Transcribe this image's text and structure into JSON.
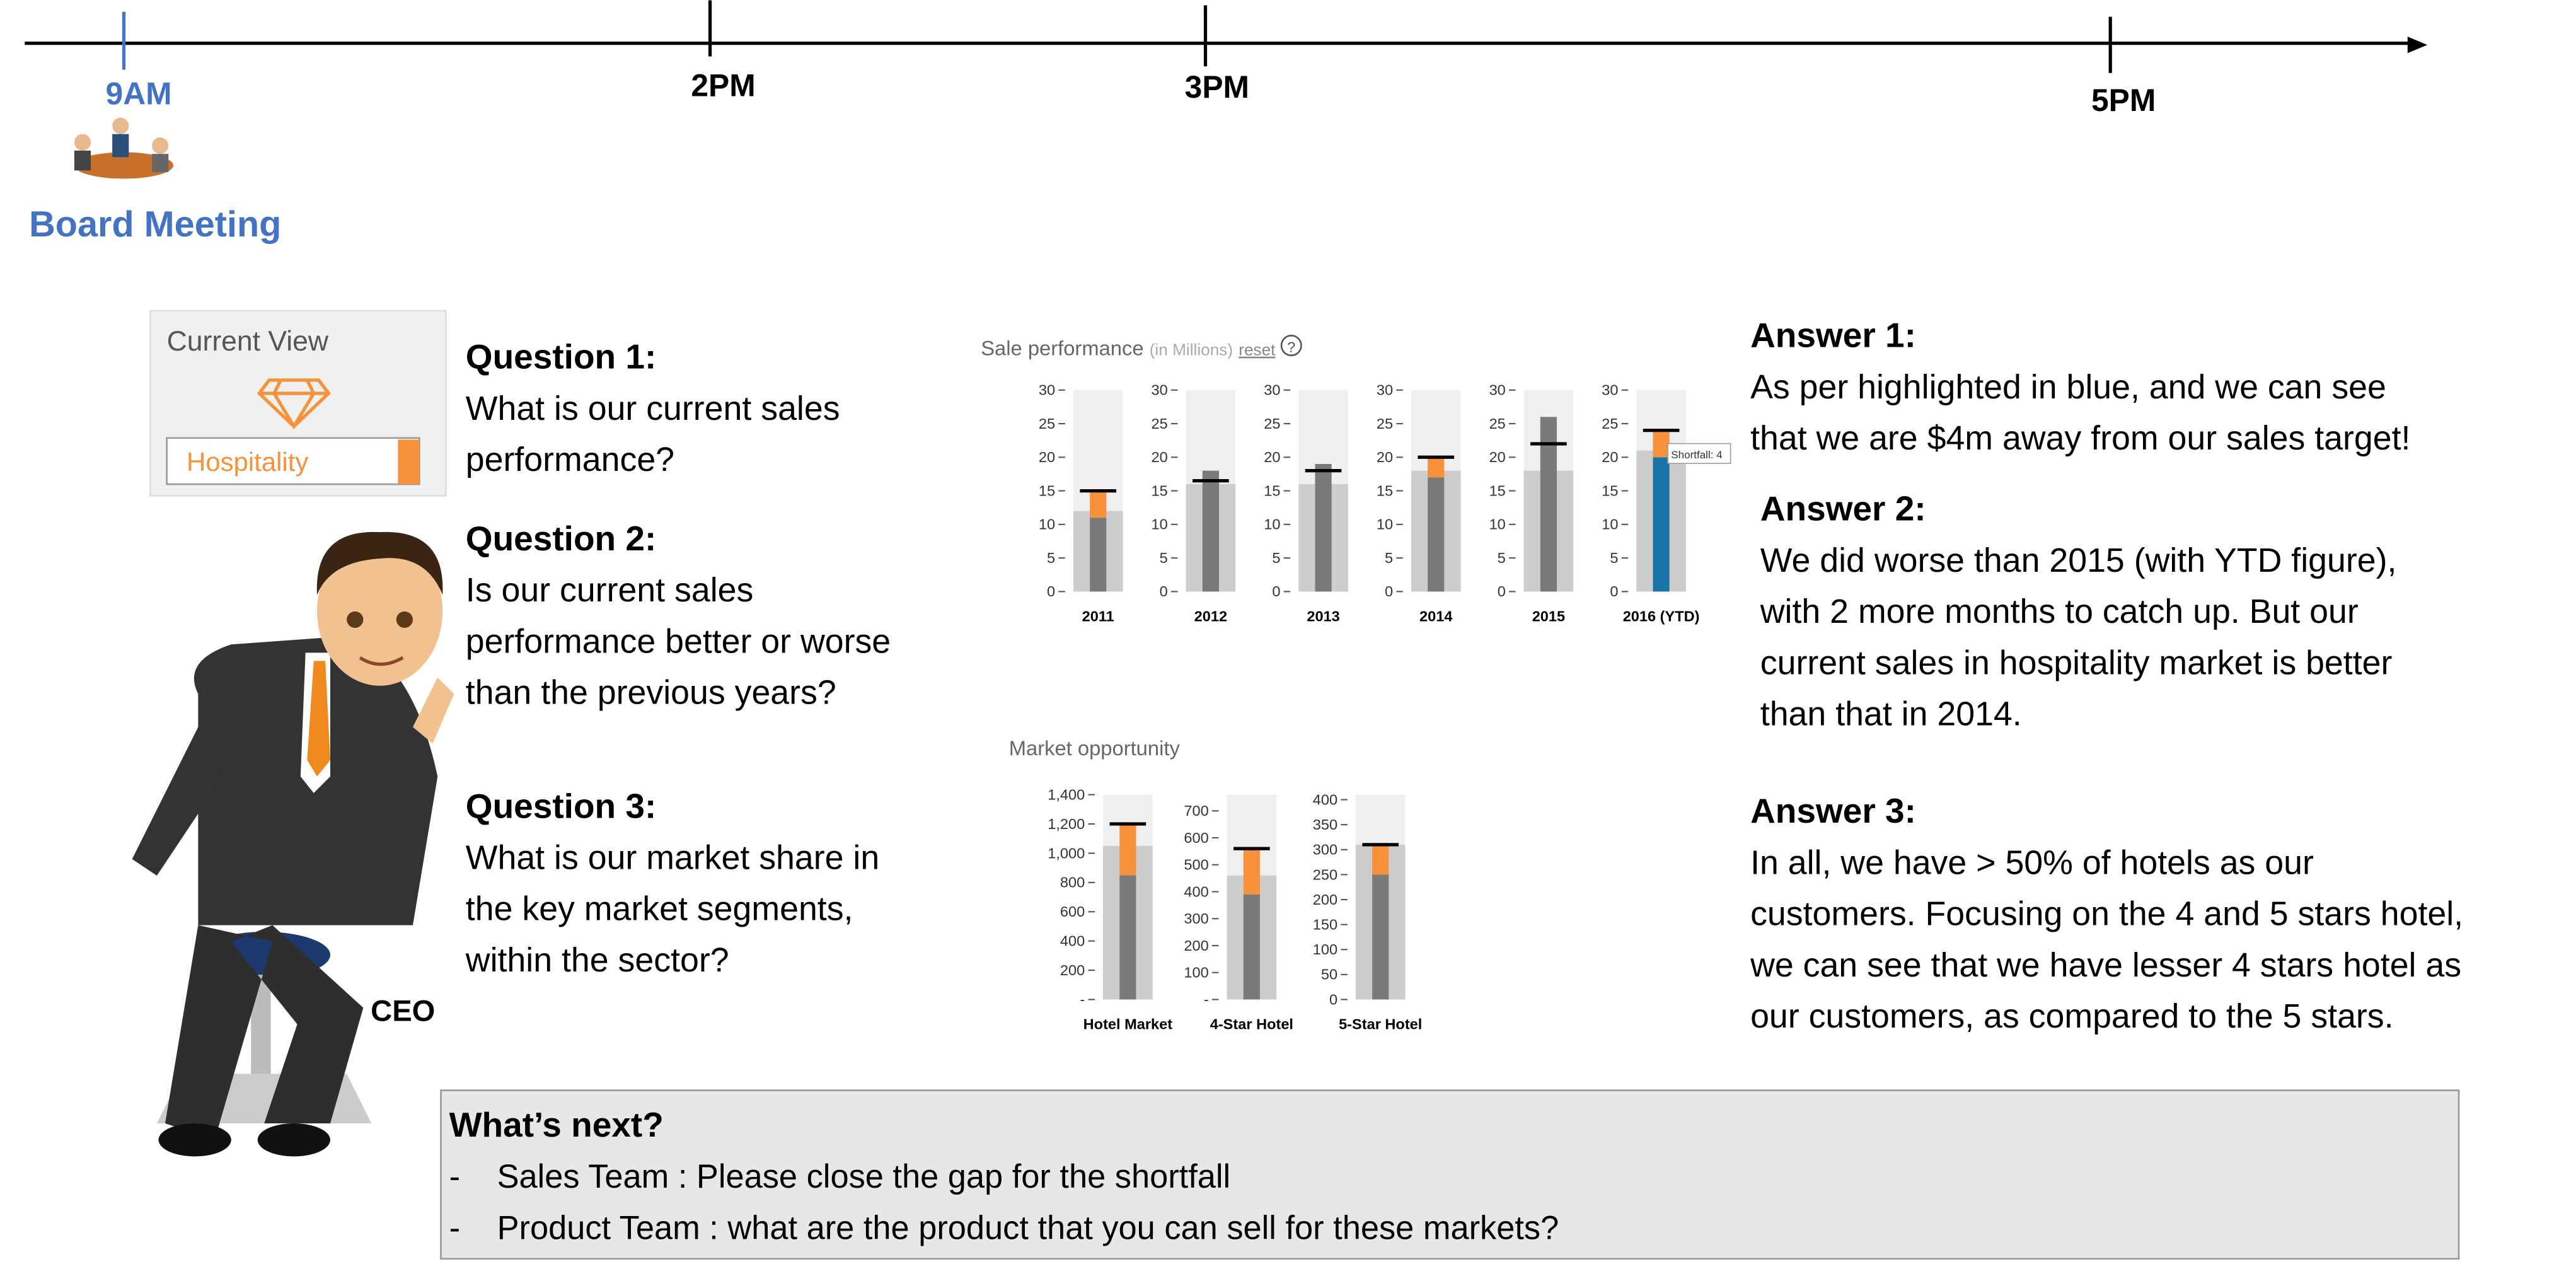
{
  "timeline": {
    "times": [
      "9AM",
      "2PM",
      "3PM",
      "5PM"
    ],
    "event": "Board Meeting"
  },
  "current_view": {
    "label": "Current View",
    "selection": "Hospitality"
  },
  "ceo_label": "CEO",
  "questions": [
    {
      "title": "Question 1:",
      "lines": [
        "What is our current sales",
        "performance?"
      ]
    },
    {
      "title": "Question 2:",
      "lines": [
        "Is our current sales",
        "performance better or worse",
        "than the previous years?"
      ]
    },
    {
      "title": "Question 3:",
      "lines": [
        "What is our market share in",
        "the key market segments,",
        "within the sector?"
      ]
    }
  ],
  "answers": [
    {
      "title": "Answer 1:",
      "lines": [
        "As per highlighted in blue, and we can see",
        "that we are $4m away from our sales target!"
      ]
    },
    {
      "title": "Answer 2:",
      "lines": [
        "We did worse than 2015 (with YTD figure),",
        "with 2 more months to catch up. But our",
        "current sales in hospitality market is better",
        "than that in 2014."
      ]
    },
    {
      "title": "Answer 3:",
      "lines": [
        "In all, we have > 50% of hotels as our",
        "customers. Focusing on the 4 and 5 stars hotel,",
        "we can see that we have lesser 4 stars hotel as",
        "our customers, as compared to the 5 stars."
      ]
    }
  ],
  "whats_next": {
    "title": "What’s next?",
    "items": [
      {
        "bullet": "-",
        "text": "Sales Team : Please close the gap for the shortfall"
      },
      {
        "bullet": "-",
        "text": "Product Team : what are the product that you can sell for these markets?"
      }
    ]
  },
  "sales_chart": {
    "type": "bullet",
    "title": "Sale performance",
    "subtitle": "(in Millions)",
    "reset_label": "reset",
    "help_label": "?",
    "categories": [
      "2011",
      "2012",
      "2013",
      "2014",
      "2015",
      "2016 (YTD)"
    ],
    "ylim": [
      0,
      30
    ],
    "yticks": [
      0,
      5,
      10,
      15,
      20,
      25,
      30
    ],
    "actual": [
      11,
      18,
      19,
      17,
      26,
      20
    ],
    "target": [
      15,
      16.5,
      18,
      20,
      22,
      24
    ],
    "band": [
      12,
      16,
      16,
      18,
      18,
      21
    ],
    "highlight": "2016 (YTD)",
    "annotation": "Shortfall: 4",
    "colors": {
      "background": "#efefef",
      "band": "#cdcdcd",
      "actual": "#7a7a7a",
      "highlight": "#1a75a8",
      "shortfall": "#f7923a",
      "target": "#000000"
    }
  },
  "market_chart": {
    "type": "bullet",
    "title": "Market opportunity",
    "panels": [
      {
        "category": "Hotel Market",
        "ylim": [
          0,
          1400
        ],
        "yticks": [
          {
            "value": 0,
            "label": "-"
          },
          200,
          400,
          600,
          800,
          {
            "value": 1000,
            "label": "1,000"
          },
          {
            "value": 1200,
            "label": "1,200"
          },
          {
            "value": 1400,
            "label": "1,400"
          }
        ],
        "actual": 850,
        "target": 1200,
        "band": 1050
      },
      {
        "category": "4-Star Hotel",
        "ylim": [
          0,
          760
        ],
        "yticks": [
          {
            "value": 0,
            "label": "-"
          },
          100,
          200,
          300,
          400,
          500,
          600,
          700
        ],
        "actual": 390,
        "target": 560,
        "band": 460
      },
      {
        "category": "5-Star Hotel",
        "ylim": [
          0,
          410
        ],
        "yticks": [
          0,
          50,
          100,
          150,
          200,
          250,
          300,
          350,
          400
        ],
        "actual": 250,
        "target": 310,
        "band": 310
      }
    ],
    "colors": {
      "background": "#efefef",
      "band": "#cdcdcd",
      "actual": "#7a7a7a",
      "shortfall": "#f7923a",
      "target": "#000000"
    }
  }
}
